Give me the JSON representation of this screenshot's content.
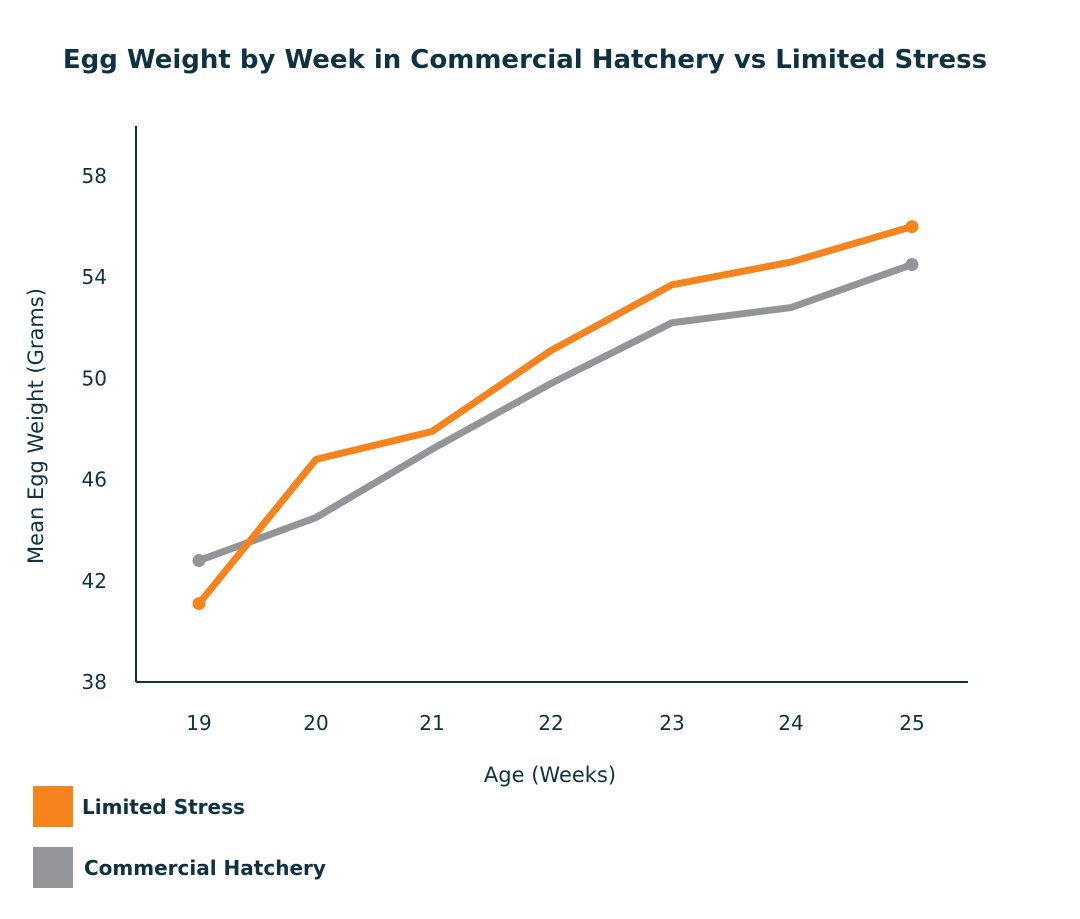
{
  "chart_data": {
    "type": "line",
    "title": "Egg Weight by Week in Commercial Hatchery vs Limited Stress",
    "xlabel": "Age (Weeks)",
    "ylabel": "Mean Egg Weight (Grams)",
    "x": [
      19,
      20,
      21,
      22,
      23,
      24,
      25
    ],
    "ylim": [
      38,
      60
    ],
    "yticks": [
      38,
      42,
      46,
      50,
      54,
      58
    ],
    "series": [
      {
        "name": "Limited Stress",
        "color": "#f5841f",
        "values": [
          41.1,
          46.8,
          47.9,
          51.1,
          53.7,
          54.6,
          56.0
        ]
      },
      {
        "name": "Commercial Hatchery",
        "color": "#939598",
        "values": [
          42.8,
          44.5,
          47.2,
          49.8,
          52.2,
          52.8,
          54.5
        ]
      }
    ],
    "legend_position": "bottom-left"
  }
}
